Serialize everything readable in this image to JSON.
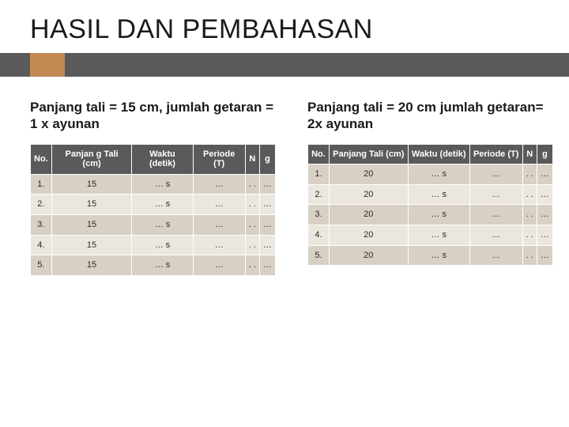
{
  "title": "HASIL DAN PEMBAHASAN",
  "colors": {
    "bar": "#5a5a5a",
    "accent": "#c28a52",
    "header_bg": "#5a5a5a",
    "header_fg": "#ffffff",
    "row_odd": "#d9d0c5",
    "row_even": "#ece7de",
    "text": "#1a1a1a"
  },
  "left": {
    "heading": "Panjang tali = 15 cm, jumlah getaran = 1 x ayunan",
    "columns": [
      "No.",
      "Panjan g Tali (cm)",
      "Waktu (detik)",
      "Periode (T)",
      "N",
      "g"
    ],
    "rows": [
      [
        "1.",
        "15",
        "… s",
        "…",
        ". .",
        "…"
      ],
      [
        "2.",
        "15",
        "… s",
        "…",
        ". .",
        "…"
      ],
      [
        "3.",
        "15",
        "… s",
        "…",
        ". .",
        "…"
      ],
      [
        "4.",
        "15",
        "… s",
        "…",
        ". .",
        "…"
      ],
      [
        "5.",
        "15",
        "… s",
        "…",
        ". .",
        "…"
      ]
    ]
  },
  "right": {
    "heading": "Panjang tali = 20 cm jumlah getaran=  2x ayunan",
    "columns": [
      "No.",
      "Panjang Tali (cm)",
      "Waktu (detik)",
      "Periode (T)",
      "N",
      "g"
    ],
    "rows": [
      [
        "1.",
        "20",
        "… s",
        "…",
        ". .",
        "…"
      ],
      [
        "2.",
        "20",
        "… s",
        "…",
        ". .",
        "…"
      ],
      [
        "3.",
        "20",
        "… s",
        "…",
        ". .",
        "…"
      ],
      [
        "4.",
        "20",
        "… s",
        "…",
        ". .",
        "…"
      ],
      [
        "5.",
        "20",
        "… s",
        "…",
        ". .",
        "…"
      ]
    ]
  }
}
